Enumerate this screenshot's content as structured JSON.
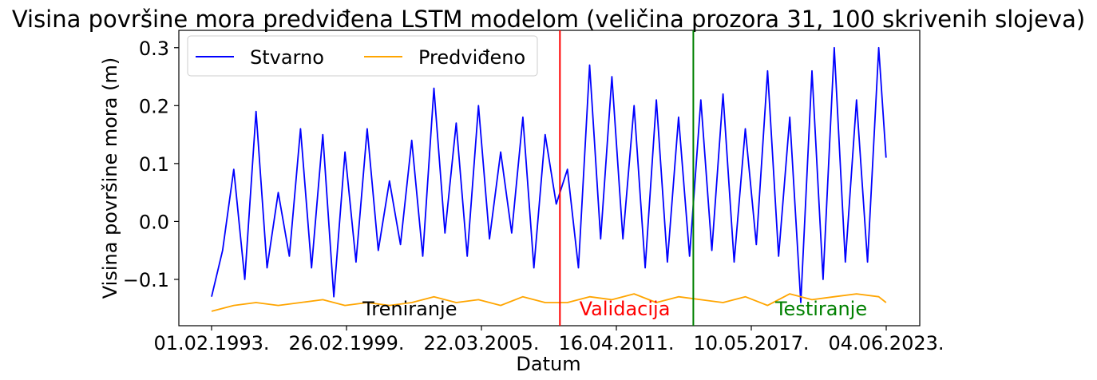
{
  "chart_data": {
    "type": "line",
    "title": "Visina površine mora predviđena LSTM modelom (veličina prozora 31, 100 skrivenih slojeva)",
    "xlabel": "Datum",
    "ylabel": "Visina površine mora (m)",
    "x_range": [
      "1993-02-01",
      "2023-06-04"
    ],
    "ylim": [
      -0.18,
      0.33
    ],
    "yticks": [
      -0.1,
      0.0,
      0.1,
      0.2,
      0.3
    ],
    "ytick_labels": [
      "−0.1",
      "0.0",
      "0.1",
      "0.2",
      "0.3"
    ],
    "xticks": [
      {
        "date": "1993-02-01",
        "label": "01.02.1993."
      },
      {
        "date": "1999-02-26",
        "label": "26.02.1999."
      },
      {
        "date": "2005-03-22",
        "label": "22.03.2005."
      },
      {
        "date": "2011-04-16",
        "label": "16.04.2011."
      },
      {
        "date": "2017-05-10",
        "label": "10.05.2017."
      },
      {
        "date": "2023-06-04",
        "label": "04.06.2023."
      }
    ],
    "legend": {
      "placement": "top-left",
      "columns": 2
    },
    "grid": false,
    "series": [
      {
        "name": "Stvarno",
        "color": "#0000ff",
        "x": [
          "1993-02",
          "1993-08",
          "1994-02",
          "1994-08",
          "1995-02",
          "1995-08",
          "1996-02",
          "1996-08",
          "1997-02",
          "1997-08",
          "1998-02",
          "1998-08",
          "1999-02",
          "1999-08",
          "2000-02",
          "2000-08",
          "2001-02",
          "2001-08",
          "2002-02",
          "2002-08",
          "2003-02",
          "2003-08",
          "2004-02",
          "2004-08",
          "2005-02",
          "2005-08",
          "2006-02",
          "2006-08",
          "2007-02",
          "2007-08",
          "2008-02",
          "2008-08",
          "2009-02",
          "2009-08",
          "2010-02",
          "2010-08",
          "2011-02",
          "2011-08",
          "2012-02",
          "2012-08",
          "2013-02",
          "2013-08",
          "2014-02",
          "2014-08",
          "2015-02",
          "2015-08",
          "2016-02",
          "2016-08",
          "2017-02",
          "2017-08",
          "2018-02",
          "2018-08",
          "2019-02",
          "2019-08",
          "2020-02",
          "2020-08",
          "2021-02",
          "2021-08",
          "2022-02",
          "2022-08",
          "2023-02",
          "2023-06"
        ],
        "y": [
          -0.13,
          -0.05,
          0.09,
          -0.1,
          0.19,
          -0.08,
          0.05,
          -0.06,
          0.16,
          -0.08,
          0.15,
          -0.13,
          0.12,
          -0.07,
          0.16,
          -0.05,
          0.07,
          -0.04,
          0.14,
          -0.06,
          0.23,
          -0.02,
          0.17,
          -0.06,
          0.2,
          -0.03,
          0.12,
          -0.02,
          0.18,
          -0.08,
          0.15,
          0.03,
          0.09,
          -0.08,
          0.27,
          -0.03,
          0.25,
          -0.03,
          0.2,
          -0.08,
          0.21,
          -0.07,
          0.18,
          -0.06,
          0.21,
          -0.05,
          0.22,
          -0.07,
          0.16,
          -0.04,
          0.26,
          -0.06,
          0.18,
          -0.14,
          0.26,
          -0.1,
          0.3,
          -0.07,
          0.21,
          -0.07,
          0.3,
          0.11
        ]
      },
      {
        "name": "Predviđeno",
        "color": "#ffa500",
        "x": [
          "1993-02",
          "1994-02",
          "1995-02",
          "1996-02",
          "1997-02",
          "1998-02",
          "1999-02",
          "2000-02",
          "2001-02",
          "2002-02",
          "2003-02",
          "2004-02",
          "2005-02",
          "2006-02",
          "2007-02",
          "2008-02",
          "2009-02",
          "2010-02",
          "2011-02",
          "2012-02",
          "2013-02",
          "2014-02",
          "2015-02",
          "2016-02",
          "2017-02",
          "2018-02",
          "2019-02",
          "2020-02",
          "2021-02",
          "2022-02",
          "2023-02",
          "2023-06"
        ],
        "y": [
          -0.155,
          -0.145,
          -0.14,
          -0.145,
          -0.14,
          -0.135,
          -0.145,
          -0.14,
          -0.145,
          -0.14,
          -0.13,
          -0.14,
          -0.135,
          -0.145,
          -0.13,
          -0.14,
          -0.14,
          -0.13,
          -0.135,
          -0.125,
          -0.14,
          -0.13,
          -0.135,
          -0.14,
          -0.13,
          -0.145,
          -0.125,
          -0.135,
          -0.13,
          -0.125,
          -0.13,
          -0.14
        ]
      }
    ],
    "split_lines": [
      {
        "date": "2008-10-01",
        "color": "#ff0000"
      },
      {
        "date": "2014-10-01",
        "color": "#008000"
      }
    ],
    "region_labels": [
      {
        "text": "Treniranje",
        "date": "2002-01-01",
        "y": -0.15,
        "color": "#000000"
      },
      {
        "text": "Validacija",
        "date": "2011-09-01",
        "y": -0.15,
        "color": "#ff0000"
      },
      {
        "text": "Testiranje",
        "date": "2020-07-01",
        "y": -0.15,
        "color": "#008000"
      }
    ]
  }
}
